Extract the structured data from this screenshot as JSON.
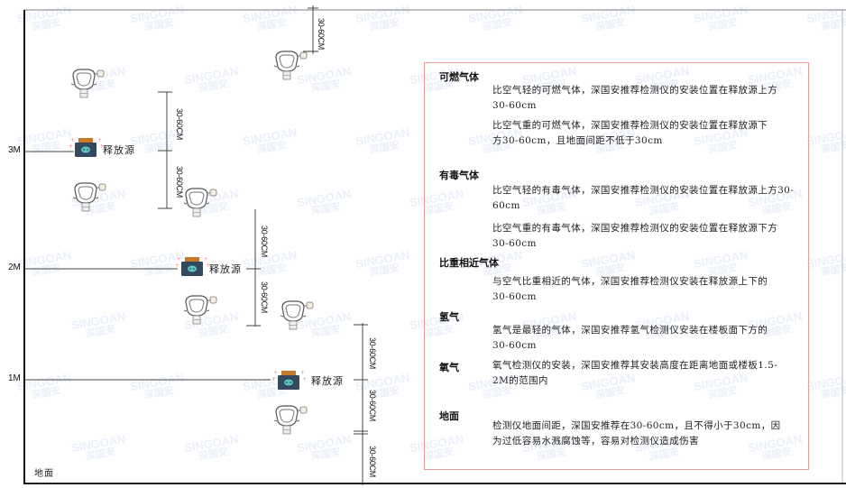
{
  "watermark": {
    "brand": "SINGOAN",
    "cn": "深国安"
  },
  "levels": {
    "three": "3M",
    "two": "2M",
    "one": "1M",
    "ground": "地面"
  },
  "release_source_label": "释放源",
  "dimension_label": "30-60CM",
  "info": {
    "sections": [
      {
        "title": "可燃气体",
        "paragraphs": [
          "比空气轻的可燃气体，深国安推荐检测仪的安装位置在释放源上方30-60cm",
          "比空气重的可燃气体，深国安推荐检测仪的安装位置在释放源下方30-60cm，且地面间距不低于30cm"
        ]
      },
      {
        "title": "有毒气体",
        "paragraphs": [
          "比空气轻的有毒气体，深国安推荐检测仪的安装位置在释放源上方30-60cm",
          "比空气重的有毒气体，深国安推荐检测仪的安装位置在释放源下方30-60cm"
        ]
      },
      {
        "title": "比重相近气体",
        "paragraphs": [
          "与空气比重相近的气体，深国安推荐检测仪安装在释放源上下的30-60cm"
        ]
      },
      {
        "title": "氢气",
        "paragraphs": [
          "氢气是最轻的气体，深国安推荐氢气检测仪安装在楼板面下方的30-60cm"
        ]
      },
      {
        "title": "氧气",
        "paragraphs": [
          "氧气检测仪的安装，深国安推荐其安装高度在距离地面或楼板1.5-2M的范围内"
        ]
      },
      {
        "title": "地面",
        "paragraphs": [
          "检测仪地面间距，深国安推荐在30-60cm，且不得小于30cm，因为过低容易水溅腐蚀等，容易对检测仪造成伤害"
        ]
      }
    ]
  },
  "colors": {
    "source_body": "#34495e",
    "source_cap": "#c8782a",
    "box_border": "#e89a9a"
  }
}
